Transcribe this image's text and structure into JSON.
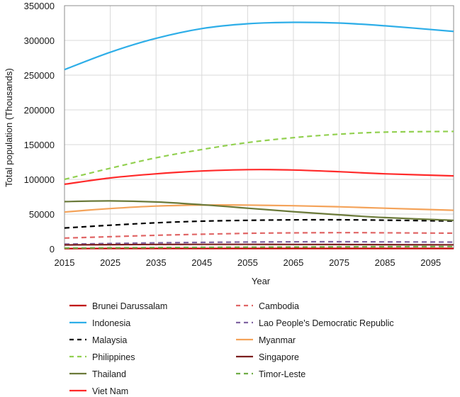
{
  "chart_data": {
    "type": "line",
    "xlabel": "Year",
    "ylabel": "Total population (Thousands)",
    "xlim": [
      2015,
      2100
    ],
    "ylim": [
      0,
      350000
    ],
    "xticks": [
      2015,
      2025,
      2035,
      2045,
      2055,
      2065,
      2075,
      2085,
      2095
    ],
    "yticks": [
      0,
      50000,
      100000,
      150000,
      200000,
      250000,
      300000,
      350000
    ],
    "grid": true,
    "legend_position": "bottom",
    "x": [
      2015,
      2025,
      2035,
      2045,
      2055,
      2065,
      2075,
      2085,
      2100
    ],
    "series": [
      {
        "name": "Brunei Darussalam",
        "color": "#c00000",
        "dash": "solid",
        "values": [
          420,
          470,
          500,
          520,
          525,
          520,
          510,
          495,
          465
        ]
      },
      {
        "name": "Cambodia",
        "color": "#e06666",
        "dash": "dashed",
        "values": [
          15500,
          17500,
          19500,
          21000,
          22300,
          23000,
          23300,
          23100,
          22500
        ]
      },
      {
        "name": "Indonesia",
        "color": "#2eaee8",
        "dash": "solid",
        "values": [
          258000,
          283000,
          303000,
          317000,
          324000,
          326000,
          325000,
          321000,
          313000
        ]
      },
      {
        "name": "Lao People's Democratic Republic",
        "color": "#8064a2",
        "dash": "dashed",
        "values": [
          6700,
          7700,
          8600,
          9300,
          9800,
          10100,
          10200,
          10000,
          9700
        ]
      },
      {
        "name": "Malaysia",
        "color": "#000000",
        "dash": "dashed",
        "values": [
          30000,
          34000,
          37500,
          39800,
          41000,
          41700,
          41800,
          41200,
          40000
        ]
      },
      {
        "name": "Myanmar",
        "color": "#f4a35a",
        "dash": "solid",
        "values": [
          53000,
          58000,
          61500,
          63000,
          63000,
          62000,
          60500,
          58500,
          55500
        ]
      },
      {
        "name": "Philippines",
        "color": "#92d050",
        "dash": "dashed",
        "values": [
          100000,
          116000,
          131000,
          143000,
          153000,
          160000,
          165000,
          168000,
          169000
        ]
      },
      {
        "name": "Singapore",
        "color": "#7b1f1f",
        "dash": "solid",
        "values": [
          5600,
          6000,
          6300,
          6400,
          6400,
          6300,
          6200,
          6000,
          5800
        ]
      },
      {
        "name": "Thailand",
        "color": "#6b7a3a",
        "dash": "solid",
        "values": [
          68000,
          69000,
          67500,
          63500,
          58500,
          53500,
          49000,
          45000,
          41000
        ]
      },
      {
        "name": "Timor-Leste",
        "color": "#70ad47",
        "dash": "dashed",
        "values": [
          1200,
          1500,
          1800,
          2100,
          2400,
          2700,
          2900,
          3100,
          3300
        ]
      },
      {
        "name": "Viet Nam",
        "color": "#ff2a2a",
        "dash": "solid",
        "values": [
          93000,
          102000,
          108000,
          112000,
          114000,
          113500,
          111000,
          108000,
          105000
        ]
      }
    ]
  }
}
